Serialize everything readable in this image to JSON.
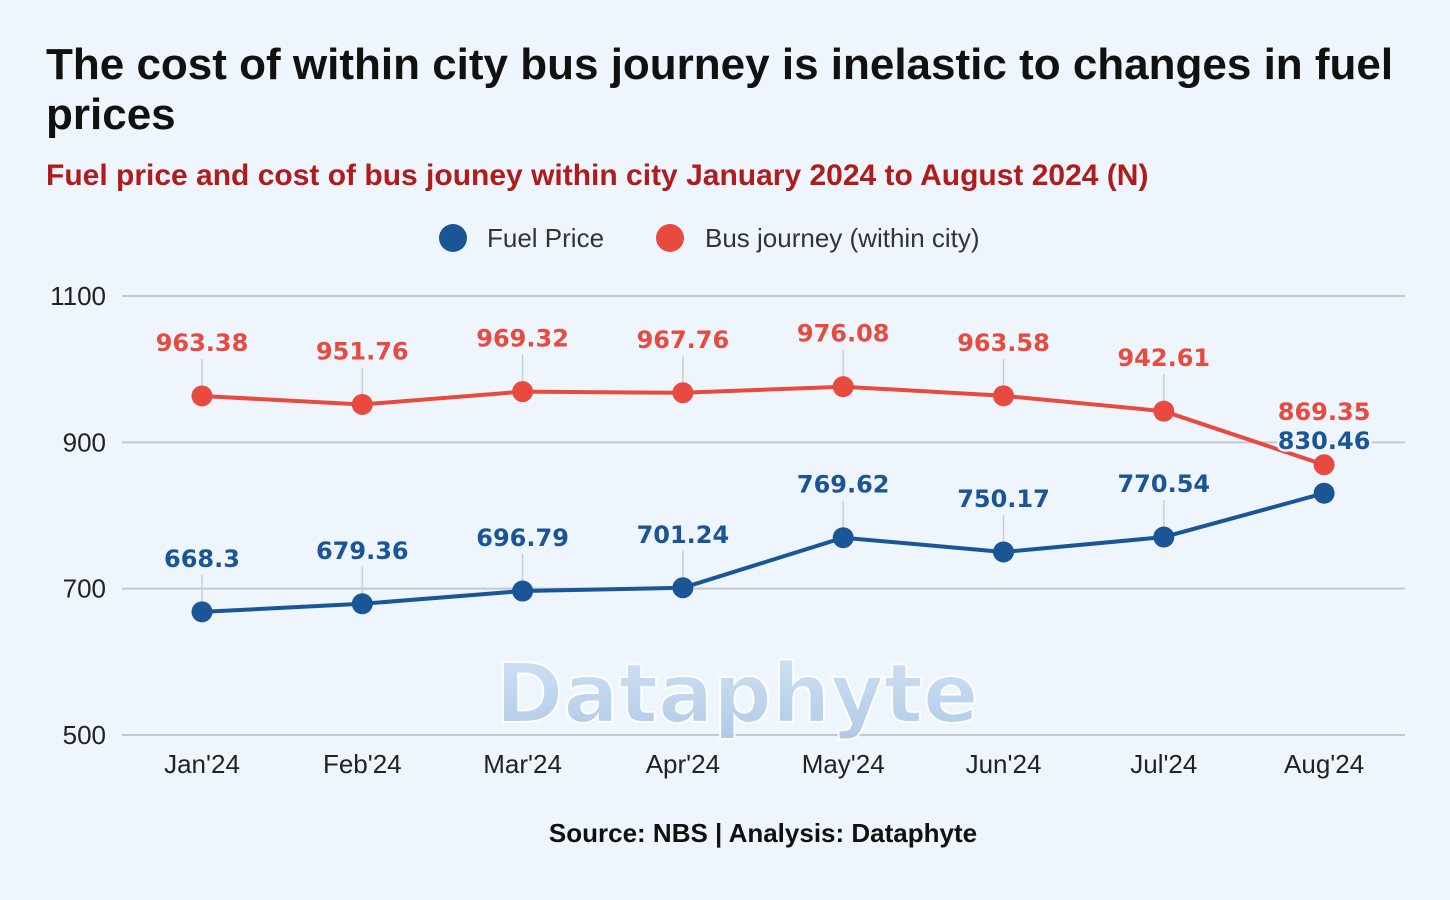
{
  "title": "The cost of within city bus journey is inelastic to changes in fuel prices",
  "subtitle": "Fuel price and cost of bus jouney within city January 2024 to August 2024 (N)",
  "source": "Source: NBS | Analysis: Dataphyte",
  "watermark": "Dataphyte",
  "chart_data": {
    "type": "line",
    "categories": [
      "Jan'24",
      "Feb'24",
      "Mar'24",
      "Apr'24",
      "May'24",
      "Jun'24",
      "Jul'24",
      "Aug'24"
    ],
    "series": [
      {
        "name": "Fuel Price",
        "color": "#1a5596",
        "values": [
          668.3,
          679.36,
          696.79,
          701.24,
          769.62,
          750.17,
          770.54,
          830.46
        ],
        "labels": [
          "668.3",
          "679.36",
          "696.79",
          "701.24",
          "769.62",
          "750.17",
          "770.54",
          "830.46"
        ]
      },
      {
        "name": "Bus journey (within city)",
        "color": "#e84a3f",
        "values": [
          963.38,
          951.76,
          969.32,
          967.76,
          976.08,
          963.58,
          942.61,
          869.35
        ],
        "labels": [
          "963.38",
          "951.76",
          "969.32",
          "967.76",
          "976.08",
          "963.58",
          "942.61",
          "869.35"
        ]
      }
    ],
    "yticks": [
      "500",
      "700",
      "900",
      "1100"
    ],
    "ylim": [
      500,
      1100
    ],
    "grid": true,
    "legend_position": "top-center"
  }
}
